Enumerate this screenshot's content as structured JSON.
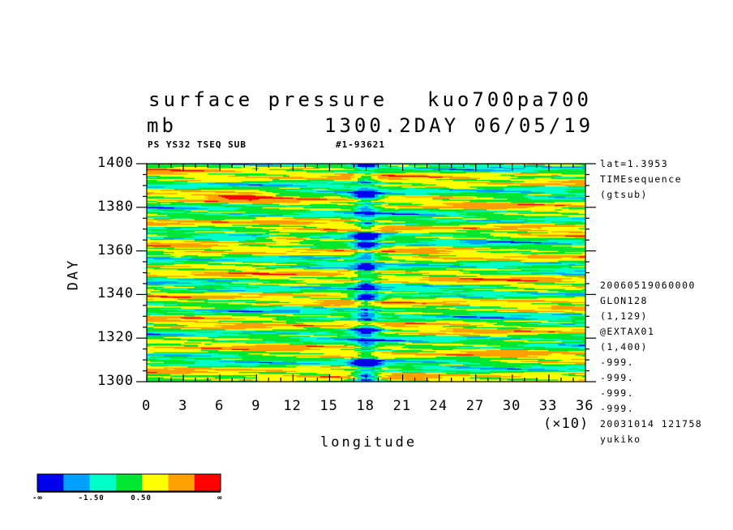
{
  "header": {
    "title_left": "surface pressure",
    "title_right": "kuo700pa700",
    "unit": "mb",
    "time_label": "1300.2DAY 06/05/19",
    "sub_left": "PS YS32 TSEQ SUB",
    "sub_right": "#1-93621"
  },
  "side_info": {
    "top": [
      "lat=1.3953",
      "TIMEsequence",
      "(gtsub)"
    ],
    "bottom": [
      "20060519060000",
      "GLON128",
      "(1,129)",
      "@EXTAX01",
      "(1,400)",
      "-999.",
      "-999.",
      "-999.",
      "-999.",
      "20031014 121758",
      "yukiko"
    ]
  },
  "chart_data": {
    "type": "heatmap",
    "xlabel": "longitude",
    "ylabel": "DAY",
    "x_multiplier": "(×10)",
    "xlim": [
      0,
      36
    ],
    "ylim": [
      1300,
      1400
    ],
    "x_ticks": [
      "0",
      "3",
      "6",
      "9",
      "12",
      "15",
      "18",
      "21",
      "24",
      "27",
      "30",
      "33",
      "36"
    ],
    "y_ticks": [
      "1300",
      "1320",
      "1340",
      "1360",
      "1380",
      "1400"
    ],
    "colorbar": {
      "colors": [
        "#0000ee",
        "#00a0ff",
        "#00ffc8",
        "#00e632",
        "#ffff00",
        "#ffa000",
        "#ff0000"
      ],
      "labels": [
        "-∞",
        "-1.50",
        "0.50",
        "∞"
      ]
    },
    "features": {
      "low_pressure_band_longitude": 18,
      "deep_lows_days": [
        1400,
        1385,
        1367,
        1362,
        1339,
        1324,
        1308,
        1302
      ],
      "high_patches": [
        {
          "longitude": 8,
          "day": 1385
        },
        {
          "longitude": 11.5,
          "day": 1366
        }
      ]
    }
  }
}
